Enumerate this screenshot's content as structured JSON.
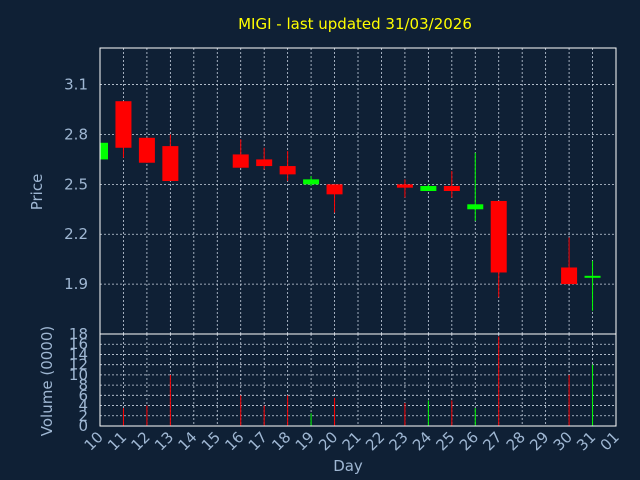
{
  "title": "MIGI - last updated 31/03/2026",
  "colors": {
    "background": "#0f2035",
    "up": "#00ff00",
    "down": "#ff0000",
    "title": "#ffff00",
    "axis_text": "#9fb7d3"
  },
  "chart_data": {
    "type": "candlestick",
    "title": "MIGI - last updated 31/03/2026",
    "xlabel": "Day",
    "x_ticks": [
      "10",
      "11",
      "12",
      "13",
      "14",
      "15",
      "16",
      "17",
      "18",
      "19",
      "20",
      "21",
      "22",
      "23",
      "24",
      "25",
      "26",
      "27",
      "28",
      "29",
      "30",
      "31",
      "01"
    ],
    "price_panel": {
      "ylabel": "Price",
      "ylim": [
        1.6,
        3.32
      ],
      "y_ticks": [
        1.9,
        2.2,
        2.5,
        2.8,
        3.1
      ],
      "candles": [
        {
          "day": "10",
          "open": 2.65,
          "high": 2.75,
          "low": 2.65,
          "close": 2.75
        },
        {
          "day": "11",
          "open": 3.0,
          "high": 3.0,
          "low": 2.66,
          "close": 2.72
        },
        {
          "day": "12",
          "open": 2.78,
          "high": 2.78,
          "low": 2.63,
          "close": 2.63
        },
        {
          "day": "13",
          "open": 2.73,
          "high": 2.8,
          "low": 2.52,
          "close": 2.52
        },
        {
          "day": "16",
          "open": 2.68,
          "high": 2.77,
          "low": 2.6,
          "close": 2.6
        },
        {
          "day": "17",
          "open": 2.65,
          "high": 2.72,
          "low": 2.59,
          "close": 2.61
        },
        {
          "day": "18",
          "open": 2.61,
          "high": 2.7,
          "low": 2.52,
          "close": 2.56
        },
        {
          "day": "19",
          "open": 2.5,
          "high": 2.55,
          "low": 2.49,
          "close": 2.53
        },
        {
          "day": "20",
          "open": 2.5,
          "high": 2.5,
          "low": 2.33,
          "close": 2.44
        },
        {
          "day": "23",
          "open": 2.5,
          "high": 2.53,
          "low": 2.42,
          "close": 2.48
        },
        {
          "day": "24",
          "open": 2.46,
          "high": 2.5,
          "low": 2.46,
          "close": 2.49
        },
        {
          "day": "25",
          "open": 2.49,
          "high": 2.58,
          "low": 2.42,
          "close": 2.46
        },
        {
          "day": "26",
          "open": 2.35,
          "high": 2.69,
          "low": 2.28,
          "close": 2.38
        },
        {
          "day": "27",
          "open": 2.4,
          "high": 2.4,
          "low": 1.82,
          "close": 1.97
        },
        {
          "day": "30",
          "open": 2.0,
          "high": 2.18,
          "low": 1.9,
          "close": 1.9
        },
        {
          "day": "31",
          "open": 1.94,
          "high": 2.04,
          "low": 1.74,
          "close": 1.95
        }
      ]
    },
    "volume_panel": {
      "ylabel": "Volume (0000)",
      "ylim": [
        0,
        18
      ],
      "y_ticks": [
        0,
        2,
        4,
        6,
        8,
        10,
        12,
        14,
        16,
        18
      ],
      "bars": [
        {
          "day": "10",
          "value": 0.5,
          "color": "#00ff00"
        },
        {
          "day": "11",
          "value": 3.5,
          "color": "#ff0000"
        },
        {
          "day": "12",
          "value": 4.0,
          "color": "#ff0000"
        },
        {
          "day": "13",
          "value": 10.0,
          "color": "#ff0000"
        },
        {
          "day": "16",
          "value": 6.0,
          "color": "#ff0000"
        },
        {
          "day": "17",
          "value": 4.0,
          "color": "#ff0000"
        },
        {
          "day": "18",
          "value": 6.0,
          "color": "#ff0000"
        },
        {
          "day": "19",
          "value": 2.5,
          "color": "#00ff00"
        },
        {
          "day": "20",
          "value": 5.5,
          "color": "#ff0000"
        },
        {
          "day": "23",
          "value": 4.5,
          "color": "#ff0000"
        },
        {
          "day": "24",
          "value": 5.0,
          "color": "#00ff00"
        },
        {
          "day": "25",
          "value": 5.0,
          "color": "#ff0000"
        },
        {
          "day": "26",
          "value": 3.5,
          "color": "#00ff00"
        },
        {
          "day": "27",
          "value": 17.5,
          "color": "#ff0000"
        },
        {
          "day": "30",
          "value": 10.0,
          "color": "#ff0000"
        },
        {
          "day": "31",
          "value": 12.0,
          "color": "#00ff00"
        }
      ]
    }
  }
}
